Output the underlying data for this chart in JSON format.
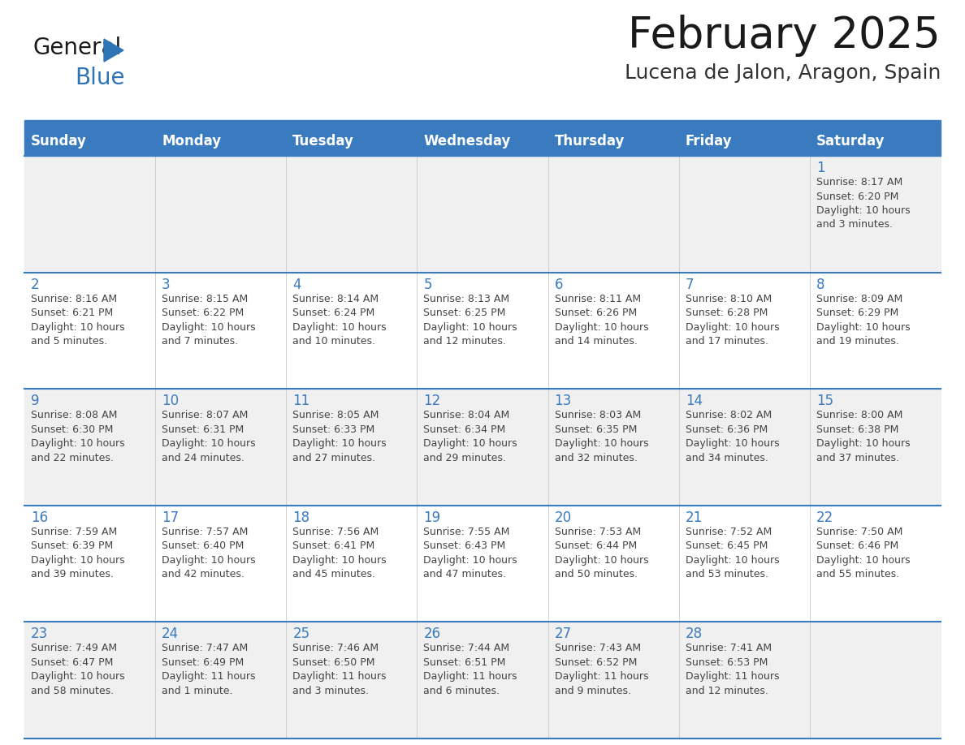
{
  "title": "February 2025",
  "subtitle": "Lucena de Jalon, Aragon, Spain",
  "days_of_week": [
    "Sunday",
    "Monday",
    "Tuesday",
    "Wednesday",
    "Thursday",
    "Friday",
    "Saturday"
  ],
  "header_bg_color": "#3a7abf",
  "header_text_color": "#ffffff",
  "cell_bg_color_odd": "#f0f0f0",
  "cell_bg_color_even": "#ffffff",
  "separator_color": "#3a7abf",
  "title_color": "#1a1a1a",
  "subtitle_color": "#333333",
  "day_number_color": "#3a7abf",
  "cell_text_color": "#444444",
  "logo_general_color": "#1a1a1a",
  "logo_blue_color": "#2e75b6",
  "weeks": [
    {
      "days": [
        {
          "day": null,
          "sunrise": null,
          "sunset": null,
          "daylight_line1": null,
          "daylight_line2": null
        },
        {
          "day": null,
          "sunrise": null,
          "sunset": null,
          "daylight_line1": null,
          "daylight_line2": null
        },
        {
          "day": null,
          "sunrise": null,
          "sunset": null,
          "daylight_line1": null,
          "daylight_line2": null
        },
        {
          "day": null,
          "sunrise": null,
          "sunset": null,
          "daylight_line1": null,
          "daylight_line2": null
        },
        {
          "day": null,
          "sunrise": null,
          "sunset": null,
          "daylight_line1": null,
          "daylight_line2": null
        },
        {
          "day": null,
          "sunrise": null,
          "sunset": null,
          "daylight_line1": null,
          "daylight_line2": null
        },
        {
          "day": 1,
          "sunrise": "Sunrise: 8:17 AM",
          "sunset": "Sunset: 6:20 PM",
          "daylight_line1": "Daylight: 10 hours",
          "daylight_line2": "and 3 minutes."
        }
      ]
    },
    {
      "days": [
        {
          "day": 2,
          "sunrise": "Sunrise: 8:16 AM",
          "sunset": "Sunset: 6:21 PM",
          "daylight_line1": "Daylight: 10 hours",
          "daylight_line2": "and 5 minutes."
        },
        {
          "day": 3,
          "sunrise": "Sunrise: 8:15 AM",
          "sunset": "Sunset: 6:22 PM",
          "daylight_line1": "Daylight: 10 hours",
          "daylight_line2": "and 7 minutes."
        },
        {
          "day": 4,
          "sunrise": "Sunrise: 8:14 AM",
          "sunset": "Sunset: 6:24 PM",
          "daylight_line1": "Daylight: 10 hours",
          "daylight_line2": "and 10 minutes."
        },
        {
          "day": 5,
          "sunrise": "Sunrise: 8:13 AM",
          "sunset": "Sunset: 6:25 PM",
          "daylight_line1": "Daylight: 10 hours",
          "daylight_line2": "and 12 minutes."
        },
        {
          "day": 6,
          "sunrise": "Sunrise: 8:11 AM",
          "sunset": "Sunset: 6:26 PM",
          "daylight_line1": "Daylight: 10 hours",
          "daylight_line2": "and 14 minutes."
        },
        {
          "day": 7,
          "sunrise": "Sunrise: 8:10 AM",
          "sunset": "Sunset: 6:28 PM",
          "daylight_line1": "Daylight: 10 hours",
          "daylight_line2": "and 17 minutes."
        },
        {
          "day": 8,
          "sunrise": "Sunrise: 8:09 AM",
          "sunset": "Sunset: 6:29 PM",
          "daylight_line1": "Daylight: 10 hours",
          "daylight_line2": "and 19 minutes."
        }
      ]
    },
    {
      "days": [
        {
          "day": 9,
          "sunrise": "Sunrise: 8:08 AM",
          "sunset": "Sunset: 6:30 PM",
          "daylight_line1": "Daylight: 10 hours",
          "daylight_line2": "and 22 minutes."
        },
        {
          "day": 10,
          "sunrise": "Sunrise: 8:07 AM",
          "sunset": "Sunset: 6:31 PM",
          "daylight_line1": "Daylight: 10 hours",
          "daylight_line2": "and 24 minutes."
        },
        {
          "day": 11,
          "sunrise": "Sunrise: 8:05 AM",
          "sunset": "Sunset: 6:33 PM",
          "daylight_line1": "Daylight: 10 hours",
          "daylight_line2": "and 27 minutes."
        },
        {
          "day": 12,
          "sunrise": "Sunrise: 8:04 AM",
          "sunset": "Sunset: 6:34 PM",
          "daylight_line1": "Daylight: 10 hours",
          "daylight_line2": "and 29 minutes."
        },
        {
          "day": 13,
          "sunrise": "Sunrise: 8:03 AM",
          "sunset": "Sunset: 6:35 PM",
          "daylight_line1": "Daylight: 10 hours",
          "daylight_line2": "and 32 minutes."
        },
        {
          "day": 14,
          "sunrise": "Sunrise: 8:02 AM",
          "sunset": "Sunset: 6:36 PM",
          "daylight_line1": "Daylight: 10 hours",
          "daylight_line2": "and 34 minutes."
        },
        {
          "day": 15,
          "sunrise": "Sunrise: 8:00 AM",
          "sunset": "Sunset: 6:38 PM",
          "daylight_line1": "Daylight: 10 hours",
          "daylight_line2": "and 37 minutes."
        }
      ]
    },
    {
      "days": [
        {
          "day": 16,
          "sunrise": "Sunrise: 7:59 AM",
          "sunset": "Sunset: 6:39 PM",
          "daylight_line1": "Daylight: 10 hours",
          "daylight_line2": "and 39 minutes."
        },
        {
          "day": 17,
          "sunrise": "Sunrise: 7:57 AM",
          "sunset": "Sunset: 6:40 PM",
          "daylight_line1": "Daylight: 10 hours",
          "daylight_line2": "and 42 minutes."
        },
        {
          "day": 18,
          "sunrise": "Sunrise: 7:56 AM",
          "sunset": "Sunset: 6:41 PM",
          "daylight_line1": "Daylight: 10 hours",
          "daylight_line2": "and 45 minutes."
        },
        {
          "day": 19,
          "sunrise": "Sunrise: 7:55 AM",
          "sunset": "Sunset: 6:43 PM",
          "daylight_line1": "Daylight: 10 hours",
          "daylight_line2": "and 47 minutes."
        },
        {
          "day": 20,
          "sunrise": "Sunrise: 7:53 AM",
          "sunset": "Sunset: 6:44 PM",
          "daylight_line1": "Daylight: 10 hours",
          "daylight_line2": "and 50 minutes."
        },
        {
          "day": 21,
          "sunrise": "Sunrise: 7:52 AM",
          "sunset": "Sunset: 6:45 PM",
          "daylight_line1": "Daylight: 10 hours",
          "daylight_line2": "and 53 minutes."
        },
        {
          "day": 22,
          "sunrise": "Sunrise: 7:50 AM",
          "sunset": "Sunset: 6:46 PM",
          "daylight_line1": "Daylight: 10 hours",
          "daylight_line2": "and 55 minutes."
        }
      ]
    },
    {
      "days": [
        {
          "day": 23,
          "sunrise": "Sunrise: 7:49 AM",
          "sunset": "Sunset: 6:47 PM",
          "daylight_line1": "Daylight: 10 hours",
          "daylight_line2": "and 58 minutes."
        },
        {
          "day": 24,
          "sunrise": "Sunrise: 7:47 AM",
          "sunset": "Sunset: 6:49 PM",
          "daylight_line1": "Daylight: 11 hours",
          "daylight_line2": "and 1 minute."
        },
        {
          "day": 25,
          "sunrise": "Sunrise: 7:46 AM",
          "sunset": "Sunset: 6:50 PM",
          "daylight_line1": "Daylight: 11 hours",
          "daylight_line2": "and 3 minutes."
        },
        {
          "day": 26,
          "sunrise": "Sunrise: 7:44 AM",
          "sunset": "Sunset: 6:51 PM",
          "daylight_line1": "Daylight: 11 hours",
          "daylight_line2": "and 6 minutes."
        },
        {
          "day": 27,
          "sunrise": "Sunrise: 7:43 AM",
          "sunset": "Sunset: 6:52 PM",
          "daylight_line1": "Daylight: 11 hours",
          "daylight_line2": "and 9 minutes."
        },
        {
          "day": 28,
          "sunrise": "Sunrise: 7:41 AM",
          "sunset": "Sunset: 6:53 PM",
          "daylight_line1": "Daylight: 11 hours",
          "daylight_line2": "and 12 minutes."
        },
        {
          "day": null,
          "sunrise": null,
          "sunset": null,
          "daylight_line1": null,
          "daylight_line2": null
        }
      ]
    }
  ]
}
